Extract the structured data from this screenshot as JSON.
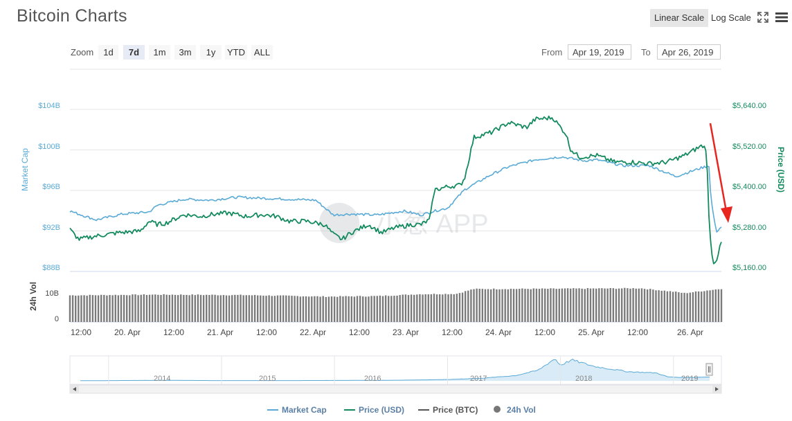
{
  "page": {
    "title": "Bitcoin Charts",
    "scale_linear": "Linear Scale",
    "scale_log": "Log Scale",
    "zoom_label": "Zoom",
    "zoom_buttons": [
      "1d",
      "7d",
      "1m",
      "3m",
      "1y",
      "YTD",
      "ALL"
    ],
    "zoom_active": "7d",
    "from_label": "From",
    "from_value": "Apr 19, 2019",
    "to_label": "To",
    "to_value": "Apr 26, 2019",
    "watermark": "小葱 APP",
    "icons": [
      "fullscreen-icon",
      "menu-icon"
    ]
  },
  "chart_data": {
    "type": "line",
    "colors": {
      "market_cap": "#5aaad6",
      "price_usd": "#138a5e",
      "price_btc": "#555555",
      "volume": "#888888",
      "arrow": "#e8251f"
    },
    "x_tick_labels": [
      "12:00",
      "20. Apr",
      "12:00",
      "21. Apr",
      "12:00",
      "22. Apr",
      "12:00",
      "23. Apr",
      "12:00",
      "24. Apr",
      "12:00",
      "25. Apr",
      "12:00",
      "26. Apr"
    ],
    "left_axis": {
      "title": "Market Cap",
      "ticks": [
        "$104B",
        "$100B",
        "$96B",
        "$92B",
        "$88B"
      ],
      "range": [
        88,
        104
      ]
    },
    "right_axis": {
      "title": "Price (USD)",
      "ticks": [
        "$5,640.00",
        "$5,520.00",
        "$5,400.00",
        "$5,280.00",
        "$5,160.00"
      ],
      "range": [
        5160,
        5640
      ]
    },
    "volume_axis": {
      "title": "24h Vol",
      "ticks": [
        "10B",
        "0"
      ]
    },
    "series": [
      {
        "name": "Market Cap",
        "unit": "USD billions",
        "x_days": [
          0,
          0.3,
          0.6,
          0.9,
          1.0,
          1.3,
          1.6,
          1.9,
          2.2,
          2.5,
          2.8,
          3.0,
          3.2,
          3.5,
          3.8,
          4.0,
          4.15,
          4.3,
          4.5,
          4.8,
          5.0,
          5.3,
          5.6,
          5.85,
          6.0,
          6.3,
          6.6,
          6.9,
          7.2,
          7.28,
          7.3,
          7.36,
          7.42
        ],
        "values": [
          93.7,
          92.8,
          93.4,
          93.6,
          94.3,
          94.9,
          94.8,
          95.1,
          95.0,
          94.9,
          94.8,
          93.3,
          93.4,
          93.3,
          93.7,
          93.3,
          93.7,
          94.0,
          95.9,
          97.4,
          98.2,
          98.9,
          99.2,
          98.8,
          98.9,
          98.3,
          98.3,
          97.2,
          98.1,
          98.3,
          95.0,
          91.6,
          92.1
        ]
      },
      {
        "name": "Price (USD)",
        "unit": "USD",
        "x_days": [
          0,
          0.1,
          0.3,
          0.55,
          0.8,
          0.9,
          1.0,
          1.1,
          1.3,
          1.5,
          1.6,
          1.8,
          2.0,
          2.2,
          2.35,
          2.5,
          2.7,
          2.9,
          3.0,
          3.1,
          3.2,
          3.4,
          3.55,
          3.7,
          3.8,
          3.9,
          4.0,
          4.1,
          4.15,
          4.3,
          4.45,
          4.5,
          4.6,
          4.8,
          5.0,
          5.2,
          5.3,
          5.5,
          5.65,
          5.7,
          5.8,
          6.0,
          6.2,
          6.4,
          6.6,
          6.8,
          7.0,
          7.1,
          7.2,
          7.25,
          7.28,
          7.32,
          7.36,
          7.42
        ],
        "values": [
          5275,
          5245,
          5255,
          5265,
          5270,
          5300,
          5290,
          5295,
          5320,
          5315,
          5320,
          5325,
          5315,
          5320,
          5315,
          5300,
          5300,
          5290,
          5260,
          5245,
          5265,
          5290,
          5265,
          5280,
          5285,
          5290,
          5290,
          5305,
          5395,
          5405,
          5410,
          5435,
          5555,
          5570,
          5600,
          5585,
          5610,
          5615,
          5565,
          5520,
          5495,
          5500,
          5480,
          5480,
          5475,
          5480,
          5500,
          5515,
          5530,
          5520,
          5300,
          5175,
          5180,
          5235
        ]
      },
      {
        "name": "Price (BTC)",
        "values": []
      },
      {
        "name": "24h Vol",
        "unit": "USD billions",
        "x_days": [
          0,
          1.0,
          2.0,
          2.9,
          3.5,
          4.0,
          4.4,
          4.6,
          5.5,
          6.5,
          6.9,
          7.0,
          7.42
        ],
        "values": [
          10.9,
          11.2,
          11.0,
          10.4,
          10.6,
          11.4,
          11.5,
          13.5,
          13.6,
          13.8,
          12.3,
          11.8,
          13.6
        ]
      }
    ],
    "navigator": {
      "year_labels": [
        "2014",
        "2015",
        "2016",
        "2017",
        "2018",
        "2019"
      ],
      "x_years": [
        2013.75,
        2014.5,
        2015.0,
        2015.5,
        2016.0,
        2016.6,
        2017.0,
        2017.3,
        2017.6,
        2017.8,
        2017.95,
        2018.0,
        2018.1,
        2018.3,
        2018.6,
        2018.85,
        2018.95,
        2019.1,
        2019.32
      ],
      "values": [
        1,
        4,
        2,
        2,
        3,
        5,
        10,
        20,
        40,
        80,
        170,
        120,
        160,
        110,
        70,
        60,
        30,
        25,
        30
      ]
    },
    "legend": {
      "placement": "bottom",
      "items": [
        "Market Cap",
        "Price (USD)",
        "Price (BTC)",
        "24h Vol"
      ]
    }
  }
}
